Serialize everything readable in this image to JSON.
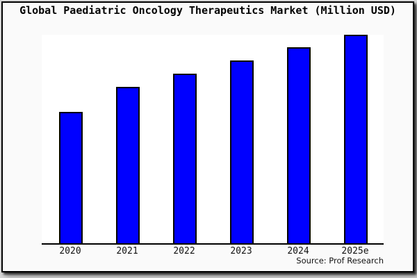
{
  "title": "Global Paediatric Oncology Therapeutics Market (Million USD)",
  "source": "Source: Prof Research",
  "colors": {
    "bar_fill": "#0000ff",
    "bar_border": "#000000",
    "figure_bg": "#fafafa",
    "plot_bg": "#ffffff",
    "page_bg": "#d6d6d6",
    "frame_border": "#000000",
    "axis_line": "#000000"
  },
  "chart_data": {
    "type": "bar",
    "title": "Global Paediatric Oncology Therapeutics Market (Million USD)",
    "categories": [
      "2020",
      "2021",
      "2022",
      "2023",
      "2024",
      "2025e"
    ],
    "values": [
      189,
      225,
      244,
      263,
      282,
      300
    ],
    "xlabel": "",
    "ylabel": "",
    "ylim": [
      0,
      300
    ],
    "grid": false,
    "legend": false,
    "y_axis_labels_shown": false,
    "note": "No numeric y-axis is rendered in the image; values are relative bar heights estimated in pixels (2025e bar reaches plot top = 300)."
  }
}
